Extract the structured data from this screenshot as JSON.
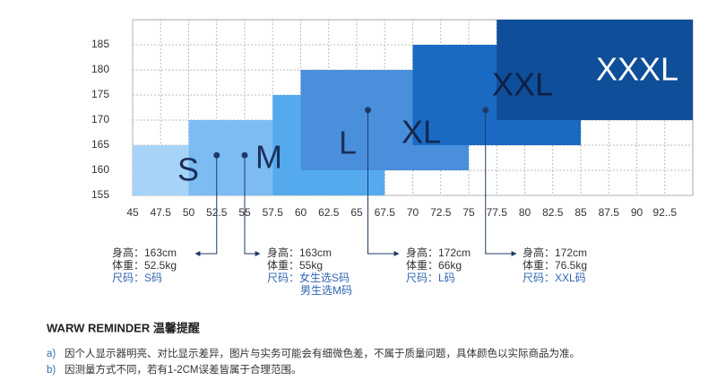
{
  "chart_data": {
    "type": "region",
    "xlim": [
      45,
      95
    ],
    "ylim": [
      155,
      190
    ],
    "xticks": [
      45,
      47.5,
      50,
      52.5,
      55,
      57.5,
      60,
      62.5,
      65,
      67.5,
      70,
      72.5,
      75,
      77.5,
      80,
      82.5,
      85,
      87.5,
      90,
      {
        "value": 92.5,
        "label": "92..5"
      }
    ],
    "yticks": [
      155,
      160,
      165,
      170,
      175,
      180,
      185
    ],
    "grid": true,
    "sizes": [
      {
        "name": "S",
        "color": "#a7d3f8",
        "weight": [
          45,
          55
        ],
        "height": [
          155,
          165
        ]
      },
      {
        "name": "M",
        "color": "#7cbcf2",
        "weight": [
          50,
          60
        ],
        "height": [
          155,
          170
        ]
      },
      {
        "name": "L",
        "color": "#55aaee",
        "weight": [
          57.5,
          67.5
        ],
        "height": [
          155,
          175
        ]
      },
      {
        "name": "XL",
        "color": "#4a8fdb",
        "weight": [
          60,
          75
        ],
        "height": [
          160,
          180
        ]
      },
      {
        "name": "XXL",
        "color": "#1a6ac3",
        "weight": [
          70,
          85
        ],
        "height": [
          165,
          185
        ]
      },
      {
        "name": "XXXL",
        "color": "#0f4e98",
        "weight": [
          77.5,
          95
        ],
        "height": [
          170,
          190
        ]
      }
    ],
    "points": [
      {
        "weight": 52.5,
        "height": 163,
        "lines": [
          "身高：163cm",
          "体重：52.5kg",
          "尺码：S码"
        ]
      },
      {
        "weight": 55,
        "height": 163,
        "lines": [
          "身高：163cm",
          "体重：55kg",
          "尺码：女生选S码",
          "男生选M码"
        ]
      },
      {
        "weight": 66,
        "height": 172,
        "lines": [
          "身高：172cm",
          "体重：66kg",
          "尺码：L码"
        ]
      },
      {
        "weight": 76.5,
        "height": 172,
        "lines": [
          "身高：172cm",
          "体重：76.5kg",
          "尺码：XXL码"
        ]
      }
    ]
  },
  "reminder": {
    "title": "WARW REMINDER 温馨提醒",
    "notes": [
      {
        "marker": "a)",
        "text": "因个人显示器明亮、对比显示差异，图片与实务可能会有细微色差，不属于质量问题，具体颜色以实际商品为准。"
      },
      {
        "marker": "b)",
        "text": "因测量方式不同，若有1-2CM误差皆属于合理范围。"
      }
    ]
  }
}
